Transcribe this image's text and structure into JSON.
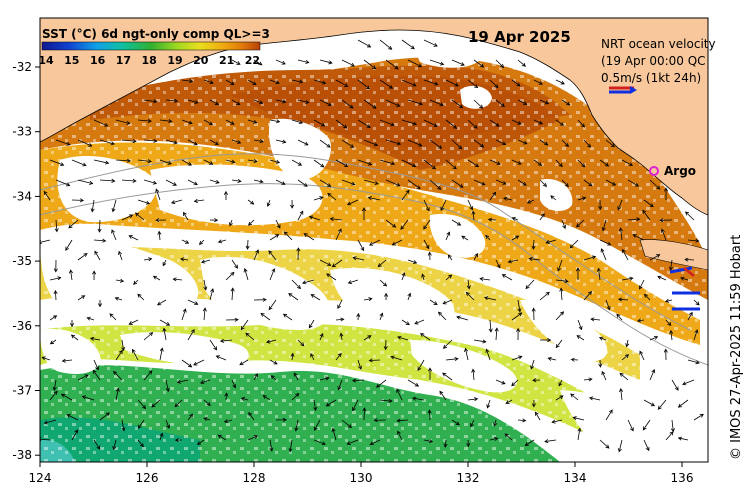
{
  "title_date": "19 Apr 2025",
  "colorbar": {
    "title": "SST (°C) 6d ngt-only comp QL>=3",
    "ticks": [
      "14",
      "15",
      "16",
      "17",
      "18",
      "19",
      "20",
      "21",
      "22"
    ],
    "colors": [
      "#1020a0",
      "#1550d8",
      "#10a8e8",
      "#10c0a0",
      "#20b040",
      "#80d020",
      "#d8e020",
      "#f0b010",
      "#e07808",
      "#c05008"
    ]
  },
  "legend": {
    "line1": "NRT ocean velocity",
    "line2": "(19 Apr 00:00 QC",
    "line3": "0.5m/s (1kt 24h)",
    "argo_label": "Argo"
  },
  "credit": "© IMOS 27-Apr-2025 11:59 Hobart",
  "axes": {
    "x_ticks": [
      "124",
      "126",
      "128",
      "130",
      "132",
      "134",
      "136"
    ],
    "y_ticks": [
      "-32",
      "-33",
      "-34",
      "-35",
      "-36",
      "-37",
      "-38"
    ]
  },
  "colors": {
    "land": "#f8c89c",
    "no_data": "#ffffff",
    "warm": "#c86a0a",
    "mid": "#e8a010",
    "cool": "#d8d818",
    "cold": "#20b050"
  }
}
